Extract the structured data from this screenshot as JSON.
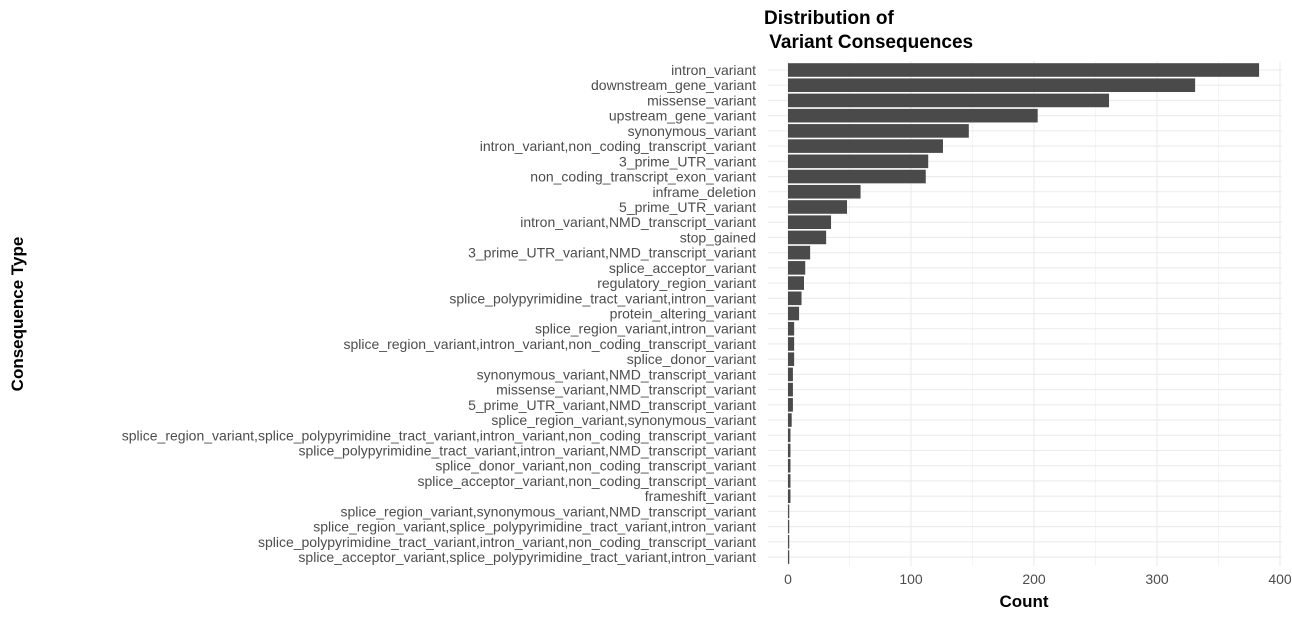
{
  "chart_data": {
    "type": "bar",
    "orientation": "horizontal",
    "title_lines": [
      "Distribution of",
      " Variant Consequences"
    ],
    "xlabel": "Count",
    "ylabel": "Consequence Type",
    "xlim": [
      0,
      400
    ],
    "x_ticks": [
      "0",
      "100",
      "200",
      "300",
      "400"
    ],
    "x_tick_values": [
      0,
      100,
      200,
      300,
      400
    ],
    "bar_color": "#4a4a4a",
    "grid": true,
    "legend": "none",
    "categories": [
      "intron_variant",
      "downstream_gene_variant",
      "missense_variant",
      "upstream_gene_variant",
      "synonymous_variant",
      "intron_variant,non_coding_transcript_variant",
      "3_prime_UTR_variant",
      "non_coding_transcript_exon_variant",
      "inframe_deletion",
      "5_prime_UTR_variant",
      "intron_variant,NMD_transcript_variant",
      "stop_gained",
      "3_prime_UTR_variant,NMD_transcript_variant",
      "splice_acceptor_variant",
      "regulatory_region_variant",
      "splice_polypyrimidine_tract_variant,intron_variant",
      "protein_altering_variant",
      "splice_region_variant,intron_variant",
      "splice_region_variant,intron_variant,non_coding_transcript_variant",
      "splice_donor_variant",
      "synonymous_variant,NMD_transcript_variant",
      "missense_variant,NMD_transcript_variant",
      "5_prime_UTR_variant,NMD_transcript_variant",
      "splice_region_variant,synonymous_variant",
      "splice_region_variant,splice_polypyrimidine_tract_variant,intron_variant,non_coding_transcript_variant",
      "splice_polypyrimidine_tract_variant,intron_variant,NMD_transcript_variant",
      "splice_donor_variant,non_coding_transcript_variant",
      "splice_acceptor_variant,non_coding_transcript_variant",
      "frameshift_variant",
      "splice_region_variant,synonymous_variant,NMD_transcript_variant",
      "splice_region_variant,splice_polypyrimidine_tract_variant,intron_variant",
      "splice_polypyrimidine_tract_variant,intron_variant,non_coding_transcript_variant",
      "splice_acceptor_variant,splice_polypyrimidine_tract_variant,intron_variant"
    ],
    "values": [
      383,
      331,
      261,
      203,
      147,
      126,
      114,
      112,
      59,
      48,
      35,
      31,
      18,
      14,
      13,
      11,
      9,
      5,
      5,
      5,
      4,
      4,
      4,
      3,
      2,
      2,
      2,
      2,
      2,
      1,
      1,
      1,
      1
    ]
  }
}
